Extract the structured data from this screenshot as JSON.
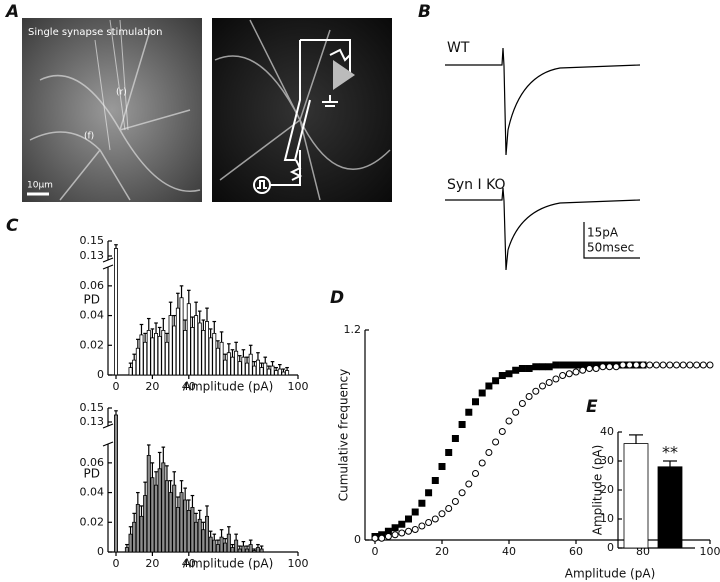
{
  "images": {
    "A": {
      "label": "A",
      "title": "Single synapse stimulation",
      "scale": "10μm",
      "f": "(f)",
      "r": "(r)"
    },
    "B": {
      "label": "B",
      "wt": "WT",
      "ko": "Syn I KO",
      "scale_y": "15pA",
      "scale_x": "50msec"
    }
  },
  "chart_data": [
    {
      "type": "bar",
      "panel": "C",
      "ylabel": "PD",
      "xlabel": "Amplitude (pA)",
      "color": "#ffffff",
      "x": [
        0,
        8,
        10,
        12,
        14,
        16,
        18,
        20,
        22,
        24,
        26,
        28,
        30,
        32,
        34,
        36,
        38,
        40,
        42,
        44,
        46,
        48,
        50,
        52,
        54,
        56,
        58,
        60,
        62,
        64,
        66,
        68,
        70,
        72,
        74,
        76,
        78,
        80,
        82,
        84,
        86,
        88,
        90,
        92,
        94
      ],
      "values": [
        0.14,
        0.005,
        0.01,
        0.018,
        0.027,
        0.022,
        0.03,
        0.025,
        0.028,
        0.026,
        0.03,
        0.022,
        0.04,
        0.033,
        0.045,
        0.052,
        0.03,
        0.048,
        0.032,
        0.04,
        0.035,
        0.03,
        0.036,
        0.025,
        0.028,
        0.018,
        0.022,
        0.01,
        0.015,
        0.012,
        0.016,
        0.009,
        0.012,
        0.008,
        0.014,
        0.006,
        0.01,
        0.005,
        0.008,
        0.004,
        0.006,
        0.003,
        0.004,
        0.002,
        0.003
      ],
      "errors": [
        0.005,
        0.003,
        0.004,
        0.006,
        0.007,
        0.006,
        0.008,
        0.006,
        0.007,
        0.006,
        0.008,
        0.006,
        0.009,
        0.007,
        0.01,
        0.008,
        0.007,
        0.009,
        0.007,
        0.009,
        0.008,
        0.007,
        0.009,
        0.006,
        0.008,
        0.005,
        0.007,
        0.004,
        0.006,
        0.005,
        0.006,
        0.004,
        0.005,
        0.004,
        0.006,
        0.003,
        0.005,
        0.003,
        0.004,
        0.002,
        0.003,
        0.002,
        0.003,
        0.002,
        0.002
      ],
      "xlim": [
        0,
        100
      ],
      "ylim": [
        0,
        0.15
      ],
      "ybreak": [
        0.07,
        0.13
      ],
      "xticks": [
        0,
        20,
        40,
        100
      ],
      "yticks": [
        0,
        0.02,
        0.04,
        0.06,
        0.13,
        0.15
      ]
    },
    {
      "type": "bar",
      "ylabel": "PD",
      "xlabel": "Amplitude (pA)",
      "color": "#8c8c8c",
      "x": [
        0,
        6,
        8,
        10,
        12,
        14,
        16,
        18,
        20,
        22,
        24,
        26,
        28,
        30,
        32,
        34,
        36,
        38,
        40,
        42,
        44,
        46,
        48,
        50,
        52,
        54,
        56,
        58,
        60,
        62,
        64,
        66,
        68,
        70,
        72,
        74,
        76,
        78,
        80
      ],
      "values": [
        0.14,
        0.003,
        0.012,
        0.02,
        0.032,
        0.024,
        0.038,
        0.065,
        0.05,
        0.045,
        0.056,
        0.06,
        0.048,
        0.04,
        0.045,
        0.03,
        0.04,
        0.035,
        0.028,
        0.03,
        0.02,
        0.022,
        0.015,
        0.024,
        0.01,
        0.008,
        0.005,
        0.01,
        0.006,
        0.012,
        0.003,
        0.008,
        0.002,
        0.004,
        0.002,
        0.005,
        0.001,
        0.003,
        0.002
      ],
      "errors": [
        0.006,
        0.002,
        0.005,
        0.006,
        0.008,
        0.007,
        0.009,
        0.012,
        0.01,
        0.009,
        0.011,
        0.012,
        0.01,
        0.008,
        0.009,
        0.007,
        0.008,
        0.008,
        0.007,
        0.008,
        0.006,
        0.006,
        0.005,
        0.007,
        0.004,
        0.004,
        0.003,
        0.005,
        0.003,
        0.005,
        0.002,
        0.004,
        0.002,
        0.003,
        0.002,
        0.003,
        0.001,
        0.002,
        0.002
      ],
      "xlim": [
        0,
        100
      ],
      "ylim": [
        0,
        0.15
      ],
      "ybreak": [
        0.07,
        0.13
      ],
      "xticks": [
        0,
        20,
        40,
        100
      ],
      "yticks": [
        0,
        0.02,
        0.04,
        0.06,
        0.13,
        0.15
      ]
    },
    {
      "type": "scatter",
      "panel": "D",
      "ylabel": "Cumulative frequency",
      "xlabel": "Amplitude (pA)",
      "xlim": [
        0,
        100
      ],
      "ylim": [
        0,
        1.2
      ],
      "xticks": [
        0,
        20,
        40,
        60,
        80,
        100
      ],
      "yticks": [
        0,
        1.2
      ],
      "series": [
        {
          "color": "#000000",
          "marker": "square",
          "x": [
            0,
            2,
            4,
            6,
            8,
            10,
            12,
            14,
            16,
            18,
            20,
            22,
            24,
            26,
            28,
            30,
            32,
            34,
            36,
            38,
            40,
            42,
            44,
            46,
            48,
            50,
            52,
            54,
            56,
            58,
            60,
            62,
            64,
            66,
            68,
            70,
            72,
            74,
            76,
            78,
            80
          ],
          "values": [
            0.02,
            0.03,
            0.05,
            0.07,
            0.09,
            0.12,
            0.16,
            0.21,
            0.27,
            0.34,
            0.42,
            0.5,
            0.58,
            0.66,
            0.73,
            0.79,
            0.84,
            0.88,
            0.91,
            0.94,
            0.95,
            0.97,
            0.98,
            0.98,
            0.99,
            0.99,
            0.99,
            1,
            1,
            1,
            1,
            1,
            1,
            1,
            1,
            1,
            1,
            1,
            1,
            1,
            1
          ]
        },
        {
          "color": "#ffffff",
          "marker": "circle",
          "x": [
            0,
            2,
            4,
            6,
            8,
            10,
            12,
            14,
            16,
            18,
            20,
            22,
            24,
            26,
            28,
            30,
            32,
            34,
            36,
            38,
            40,
            42,
            44,
            46,
            48,
            50,
            52,
            54,
            56,
            58,
            60,
            62,
            64,
            66,
            68,
            70,
            72,
            74,
            76,
            78,
            80,
            82,
            84,
            86,
            88,
            90,
            92,
            94,
            96,
            98,
            100
          ],
          "values": [
            0.01,
            0.01,
            0.02,
            0.03,
            0.04,
            0.05,
            0.06,
            0.08,
            0.1,
            0.12,
            0.15,
            0.18,
            0.22,
            0.27,
            0.32,
            0.38,
            0.44,
            0.5,
            0.56,
            0.62,
            0.68,
            0.73,
            0.78,
            0.82,
            0.85,
            0.88,
            0.9,
            0.92,
            0.94,
            0.95,
            0.96,
            0.97,
            0.98,
            0.98,
            0.99,
            0.99,
            0.99,
            1,
            1,
            1,
            1,
            1,
            1,
            1,
            1,
            1,
            1,
            1,
            1,
            1,
            1
          ]
        }
      ]
    },
    {
      "type": "bar",
      "panel": "E",
      "ylabel": "Amplitude (pA)",
      "categories": [
        null,
        null
      ],
      "values": [
        36,
        28
      ],
      "errors": [
        3,
        2
      ],
      "colors": [
        "#ffffff",
        "#000000"
      ],
      "ylim": [
        0,
        40
      ],
      "yticks": [
        0,
        10,
        20,
        30,
        40
      ],
      "annotation": "**"
    }
  ]
}
